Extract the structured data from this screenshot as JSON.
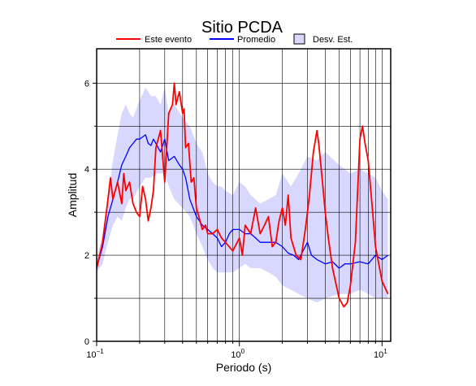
{
  "chart_data": {
    "type": "line",
    "title": "Sitio PCDA",
    "xlabel": "Periodo (s)",
    "ylabel": "Amplitud",
    "x_scale": "log",
    "xlim": [
      0.1,
      11.5
    ],
    "ylim": [
      0,
      6.8
    ],
    "grid": true,
    "legend_placement": "top",
    "xticks": [
      {
        "value": 0.1,
        "base": "10",
        "exp": "−1"
      },
      {
        "value": 1,
        "base": "10",
        "exp": "0"
      },
      {
        "value": 10,
        "base": "10",
        "exp": "1"
      }
    ],
    "yticks": [
      0,
      2,
      4,
      6
    ],
    "legend": [
      {
        "label": "Este evento",
        "kind": "line",
        "color": "#ff0000"
      },
      {
        "label": "Promedio",
        "kind": "line",
        "color": "#0000ff"
      },
      {
        "label": "Desv. Est.",
        "kind": "band",
        "color": "#d8d8ff"
      }
    ],
    "band": {
      "name": "Desv. Est.",
      "color": "#d8d8ff",
      "x": [
        0.1,
        0.11,
        0.12,
        0.13,
        0.14,
        0.15,
        0.16,
        0.17,
        0.18,
        0.2,
        0.22,
        0.24,
        0.26,
        0.28,
        0.3,
        0.32,
        0.35,
        0.4,
        0.45,
        0.5,
        0.55,
        0.6,
        0.65,
        0.7,
        0.75,
        0.8,
        0.9,
        1.0,
        1.1,
        1.2,
        1.4,
        1.6,
        1.8,
        2.0,
        2.3,
        2.6,
        3.0,
        3.5,
        4.0,
        5.0,
        6.0,
        7.0,
        8.0,
        9.0,
        10.0,
        11.0
      ],
      "upper": [
        1.9,
        2.5,
        3.3,
        4.2,
        4.8,
        5.3,
        5.5,
        5.3,
        5.2,
        5.6,
        5.9,
        5.7,
        5.7,
        5.5,
        5.9,
        5.3,
        5.5,
        5.2,
        5.0,
        4.6,
        4.4,
        3.9,
        3.7,
        3.6,
        3.6,
        3.5,
        3.4,
        3.7,
        3.6,
        3.4,
        3.2,
        3.3,
        3.4,
        3.9,
        3.6,
        3.9,
        4.3,
        4.2,
        4.4,
        4.1,
        3.9,
        4.0,
        3.9,
        3.8,
        3.5,
        3.3
      ],
      "lower": [
        1.6,
        1.8,
        2.3,
        2.7,
        2.9,
        2.8,
        3.1,
        3.3,
        3.3,
        3.6,
        3.8,
        3.8,
        3.9,
        3.9,
        3.9,
        3.6,
        3.3,
        3.1,
        2.9,
        2.5,
        2.2,
        1.9,
        1.7,
        1.6,
        1.6,
        1.6,
        1.6,
        1.7,
        1.8,
        1.7,
        1.7,
        1.6,
        1.5,
        1.3,
        1.2,
        1.1,
        1.0,
        0.9,
        1.0,
        1.1,
        1.1,
        1.2,
        1.1,
        1.0,
        1.0,
        1.0
      ]
    },
    "series": [
      {
        "name": "Promedio",
        "color": "#0000ff",
        "x": [
          0.1,
          0.11,
          0.12,
          0.13,
          0.14,
          0.15,
          0.16,
          0.17,
          0.18,
          0.19,
          0.2,
          0.21,
          0.22,
          0.23,
          0.24,
          0.25,
          0.26,
          0.28,
          0.3,
          0.32,
          0.35,
          0.38,
          0.4,
          0.42,
          0.45,
          0.5,
          0.55,
          0.6,
          0.65,
          0.7,
          0.75,
          0.8,
          0.85,
          0.9,
          1.0,
          1.1,
          1.2,
          1.3,
          1.4,
          1.6,
          1.8,
          2.0,
          2.2,
          2.4,
          2.6,
          3.0,
          3.2,
          3.5,
          4.0,
          4.5,
          5.0,
          5.5,
          6.0,
          7.0,
          8.0,
          9.0,
          10.0,
          11.0
        ],
        "y": [
          1.7,
          2.2,
          2.9,
          3.3,
          3.7,
          4.1,
          4.3,
          4.5,
          4.6,
          4.7,
          4.7,
          4.75,
          4.8,
          4.6,
          4.55,
          4.7,
          4.6,
          4.4,
          4.7,
          4.2,
          4.3,
          4.1,
          4.0,
          3.8,
          3.3,
          2.9,
          2.7,
          2.6,
          2.5,
          2.4,
          2.2,
          2.3,
          2.5,
          2.6,
          2.6,
          2.5,
          2.5,
          2.4,
          2.3,
          2.3,
          2.3,
          2.2,
          2.05,
          2.0,
          1.9,
          2.3,
          2.0,
          1.9,
          1.8,
          1.85,
          1.7,
          1.8,
          1.8,
          1.85,
          1.8,
          2.0,
          1.9,
          2.0
        ]
      },
      {
        "name": "Este evento",
        "color": "#ff0000",
        "x": [
          0.1,
          0.11,
          0.12,
          0.125,
          0.13,
          0.14,
          0.15,
          0.155,
          0.16,
          0.17,
          0.18,
          0.19,
          0.2,
          0.21,
          0.22,
          0.23,
          0.24,
          0.25,
          0.26,
          0.28,
          0.3,
          0.32,
          0.34,
          0.35,
          0.36,
          0.38,
          0.4,
          0.41,
          0.42,
          0.44,
          0.46,
          0.48,
          0.5,
          0.52,
          0.55,
          0.58,
          0.6,
          0.65,
          0.7,
          0.75,
          0.8,
          0.9,
          1.0,
          1.05,
          1.1,
          1.2,
          1.3,
          1.4,
          1.5,
          1.6,
          1.7,
          1.8,
          1.9,
          2.0,
          2.1,
          2.2,
          2.3,
          2.5,
          2.7,
          2.9,
          3.1,
          3.3,
          3.5,
          3.6,
          3.8,
          4.0,
          4.2,
          4.5,
          5.0,
          5.4,
          5.7,
          6.0,
          6.5,
          7.0,
          7.3,
          7.6,
          8.0,
          8.5,
          9.0,
          10.0,
          11.0
        ],
        "y": [
          1.7,
          2.3,
          3.3,
          3.8,
          3.3,
          3.7,
          3.2,
          3.9,
          3.5,
          3.7,
          3.2,
          3.0,
          2.9,
          3.6,
          3.3,
          2.8,
          3.1,
          3.5,
          4.5,
          4.9,
          3.7,
          5.3,
          5.5,
          6.0,
          5.5,
          5.8,
          5.3,
          5.4,
          4.5,
          4.6,
          3.7,
          3.8,
          3.1,
          2.9,
          2.6,
          2.7,
          2.5,
          2.5,
          2.6,
          2.4,
          2.3,
          2.1,
          2.4,
          2.0,
          2.7,
          2.5,
          3.1,
          2.5,
          2.7,
          2.9,
          2.2,
          2.3,
          2.8,
          3.1,
          2.7,
          3.4,
          2.4,
          2.0,
          1.9,
          2.6,
          3.4,
          4.4,
          4.9,
          4.6,
          3.8,
          3.0,
          2.4,
          1.7,
          1.0,
          0.8,
          0.9,
          1.3,
          2.3,
          4.7,
          5.0,
          4.6,
          4.2,
          3.2,
          2.2,
          1.4,
          1.1
        ]
      }
    ]
  }
}
